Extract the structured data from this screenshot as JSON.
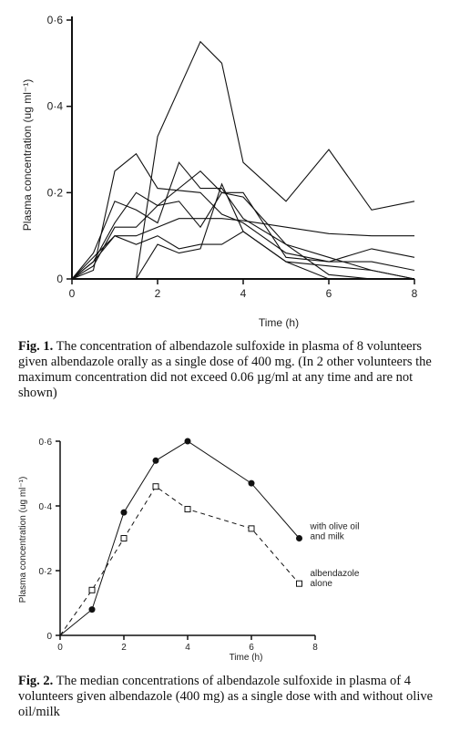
{
  "chart_data": [
    {
      "type": "line",
      "ylabel": "Plasma concentration (ug ml⁻¹)",
      "xlabel": "Time (h)",
      "x_ticks": [
        "0",
        "2",
        "4",
        "6",
        "8"
      ],
      "y_ticks": [
        "0",
        "0·2",
        "0·4",
        "0·6"
      ],
      "xlim": [
        0,
        8
      ],
      "ylim": [
        0,
        0.6
      ],
      "caption": {
        "label": "Fig. 1.",
        "text": "The concentration of albendazole sulfoxide in plasma of 8 volunteers given albendazole orally as a single dose of 400 mg. (In 2 other volunteers the maximum concentration did not exceed 0.06 µg/ml at any time and are not shown)"
      },
      "series": [
        {
          "x": [
            0,
            0.5,
            1,
            1.5,
            2,
            3,
            3.5,
            4,
            5,
            6,
            7,
            8
          ],
          "y": [
            0,
            0.02,
            0.25,
            0.29,
            0.21,
            0.2,
            0.15,
            0.13,
            0.06,
            0.04,
            0.07,
            0.05
          ]
        },
        {
          "x": [
            0,
            0.5,
            1,
            1.5,
            2,
            3,
            3.5,
            4,
            5,
            6,
            7,
            8
          ],
          "y": [
            0,
            0.03,
            0.12,
            0.12,
            0.17,
            0.25,
            0.2,
            0.2,
            0.05,
            0.04,
            0.04,
            0.02
          ]
        },
        {
          "x": [
            0,
            0.5,
            1,
            1.5,
            2,
            2.5,
            3,
            3.5,
            4,
            5,
            6,
            7,
            8
          ],
          "y": [
            0,
            0.05,
            0.1,
            0.1,
            0.12,
            0.14,
            0.14,
            0.14,
            0.135,
            0.12,
            0.105,
            0.1,
            0.1
          ]
        },
        {
          "x": [
            0,
            0.5,
            1,
            1.5,
            2,
            2.5,
            3,
            3.5,
            4,
            5,
            6,
            7,
            8
          ],
          "y": [
            0,
            0.04,
            0.13,
            0.2,
            0.17,
            0.18,
            0.12,
            0.2,
            0.19,
            0.08,
            0.01,
            0,
            0
          ]
        },
        {
          "x": [
            0,
            0.5,
            1,
            1.5,
            2,
            2.5,
            3,
            3.5,
            4,
            5,
            6,
            7,
            8
          ],
          "y": [
            0,
            0.06,
            0.18,
            0.16,
            0.13,
            0.27,
            0.21,
            0.21,
            0.14,
            0.08,
            0.05,
            0.02,
            0
          ]
        },
        {
          "x": [
            0,
            0.5,
            1,
            1.5,
            2,
            2.5,
            3,
            3.5,
            4,
            5,
            6,
            7,
            8
          ],
          "y": [
            0,
            0.04,
            0.1,
            0.08,
            0.1,
            0.07,
            0.08,
            0.08,
            0.11,
            0.04,
            0.03,
            0.02,
            0
          ]
        },
        {
          "x": [
            0,
            1,
            1.5,
            2,
            2.5,
            3,
            3.5,
            4,
            5,
            6,
            7,
            8
          ],
          "y": [
            0,
            0,
            0,
            0.08,
            0.06,
            0.07,
            0.22,
            0.11,
            0.04,
            0,
            0,
            0
          ]
        },
        {
          "x": [
            0,
            1.5,
            2,
            2.5,
            3,
            3.5,
            4,
            5,
            6,
            7,
            8
          ],
          "y": [
            0,
            0,
            0.33,
            0.44,
            0.55,
            0.5,
            0.27,
            0.18,
            0.3,
            0.16,
            0.18
          ]
        }
      ]
    },
    {
      "type": "line",
      "ylabel": "Plasma concentration (ug ml⁻¹)",
      "xlabel": "Time (h)",
      "x_ticks": [
        "0",
        "2",
        "4",
        "6",
        "8"
      ],
      "y_ticks": [
        "0",
        "0·2",
        "0·4",
        "0·6"
      ],
      "xlim": [
        0,
        8
      ],
      "ylim": [
        0,
        0.6
      ],
      "caption": {
        "label": "Fig. 2.",
        "text": "The median concentrations of albendazole sulfoxide in plasma of 4 volunteers given albendazole (400 mg) as a single dose with and without olive oil/milk"
      },
      "series": [
        {
          "name": "with olive oil and milk",
          "legend_lines": [
            "with olive oil",
            "and milk"
          ],
          "marker": "filled-circle",
          "line": "solid",
          "x": [
            0,
            1,
            2,
            3,
            4,
            6,
            7.5
          ],
          "y": [
            0,
            0.08,
            0.38,
            0.54,
            0.6,
            0.47,
            0.3
          ]
        },
        {
          "name": "albendazole alone",
          "legend_lines": [
            "albendazole",
            "alone"
          ],
          "marker": "open-square",
          "line": "dashed",
          "x": [
            0,
            1,
            2,
            3,
            4,
            6,
            7.5
          ],
          "y": [
            0,
            0.14,
            0.3,
            0.46,
            0.39,
            0.33,
            0.16
          ]
        }
      ]
    }
  ]
}
